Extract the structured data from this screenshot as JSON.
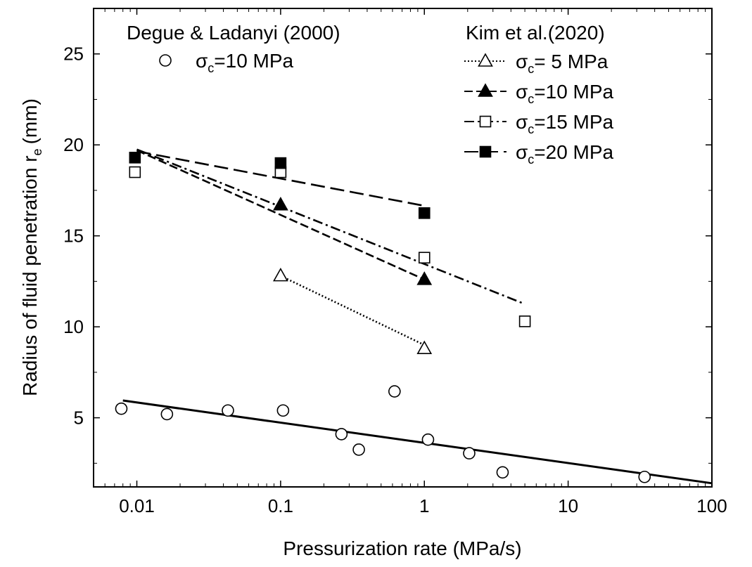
{
  "chart_data": {
    "type": "scatter",
    "xscale": "log",
    "xlabel": "Pressurization rate (MPa/s)",
    "ylabel": "Radius of fluid penetration r",
    "ylabel_sub": "e",
    "ylabel_unit": "(mm)",
    "xlim": [
      0.005,
      100
    ],
    "ylim": [
      1.2,
      27.5
    ],
    "x_ticks": [
      0.01,
      0.1,
      1,
      10,
      100
    ],
    "x_tick_labels": [
      "0.01",
      "0.1",
      "1",
      "10",
      "100"
    ],
    "y_ticks": [
      5,
      10,
      15,
      20,
      25
    ],
    "y_tick_labels": [
      "5",
      "10",
      "15",
      "20",
      "25"
    ],
    "grid": false,
    "legend_groups": [
      {
        "title": "Degue & Ladanyi (2000)",
        "placement": "top-left"
      },
      {
        "title": "Kim et al.(2020)",
        "placement": "top-right"
      }
    ],
    "series": [
      {
        "name": "σc=10 MPa",
        "label_main": "σ",
        "label_sub": "c",
        "label_rest": "=10 MPa",
        "group": 0,
        "marker": "circle",
        "filled": false,
        "line": "solid",
        "points": [
          [
            0.0078,
            5.5
          ],
          [
            0.0162,
            5.2
          ],
          [
            0.043,
            5.4
          ],
          [
            0.104,
            5.4
          ],
          [
            0.265,
            4.1
          ],
          [
            0.35,
            3.25
          ],
          [
            0.62,
            6.45
          ],
          [
            1.06,
            3.8
          ],
          [
            2.05,
            3.05
          ],
          [
            3.5,
            2.0
          ],
          [
            34,
            1.75
          ]
        ],
        "fit": [
          [
            0.008,
            5.95
          ],
          [
            100,
            1.4
          ]
        ]
      },
      {
        "name": "σc= 5 MPa",
        "label_main": "σ",
        "label_sub": "c",
        "label_rest": "= 5 MPa",
        "group": 1,
        "marker": "triangle",
        "filled": false,
        "line": "dotted",
        "points": [
          [
            0.1,
            12.8
          ],
          [
            1,
            8.8
          ]
        ],
        "fit": [
          [
            0.1,
            12.8
          ],
          [
            1,
            9.0
          ]
        ]
      },
      {
        "name": "σc=10 MPa",
        "label_main": "σ",
        "label_sub": "c",
        "label_rest": "=10 MPa",
        "group": 1,
        "marker": "triangle",
        "filled": true,
        "line": "dashed",
        "points": [
          [
            0.1,
            16.7
          ],
          [
            1,
            12.6
          ]
        ],
        "fit": [
          [
            0.01,
            19.7
          ],
          [
            1,
            12.6
          ]
        ]
      },
      {
        "name": "σc=15 MPa",
        "label_main": "σ",
        "label_sub": "c",
        "label_rest": "=15 MPa",
        "group": 1,
        "marker": "square",
        "filled": false,
        "line": "dashdot",
        "points": [
          [
            0.0097,
            18.5
          ],
          [
            0.1,
            18.5
          ],
          [
            1,
            13.8
          ],
          [
            5,
            10.3
          ]
        ],
        "fit": [
          [
            0.01,
            19.75
          ],
          [
            5,
            11.25
          ]
        ]
      },
      {
        "name": "σc=20 MPa",
        "label_main": "σ",
        "label_sub": "c",
        "label_rest": "=20 MPa",
        "group": 1,
        "marker": "square",
        "filled": true,
        "line": "longdash",
        "points": [
          [
            0.0097,
            19.3
          ],
          [
            0.1,
            19.0
          ],
          [
            1,
            16.25
          ]
        ],
        "fit": [
          [
            0.01,
            19.65
          ],
          [
            1,
            16.65
          ]
        ]
      }
    ]
  }
}
